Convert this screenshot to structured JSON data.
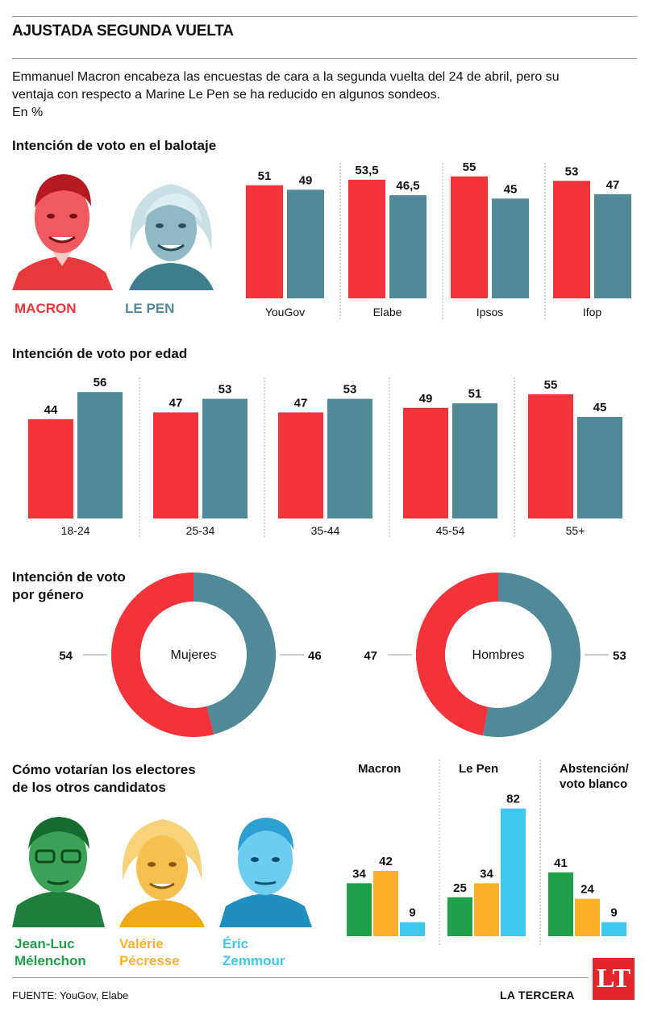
{
  "header": {
    "title": "AJUSTADA SEGUNDA VUELTA",
    "intro": "Emmanuel Macron encabeza las encuestas de cara a la segunda vuelta del 24 de abril, pero su ventaja con respecto a Marine Le Pen se ha reducido en algunos sondeos.",
    "unit": "En %"
  },
  "colors": {
    "macron": "#f2333a",
    "lepen": "#508a99",
    "green": "#1fa14a",
    "orange": "#fbb12a",
    "cyan": "#3fc8ee"
  },
  "section1": {
    "title": "Intención de voto en el balotaje",
    "macron_label": "MACRON",
    "lepen_label": "LE PEN"
  },
  "section2": {
    "title": "Intención de voto por edad"
  },
  "section3": {
    "title_line1": "Intención de voto",
    "title_line2": "por género"
  },
  "section4": {
    "title_line1": "Cómo votarían los electores",
    "title_line2": "de los otros candidatos",
    "cand1_line1": "Jean-Luc",
    "cand1_line2": "Mélenchon",
    "cand2_line1": "Valérie",
    "cand2_line2": "Pécresse",
    "cand3_line1": "Éric",
    "cand3_line2": "Zemmour"
  },
  "footer": {
    "source": "FUENTE: YouGov, Elabe",
    "brand": "LA TERCERA",
    "logo": "LT"
  },
  "chart_data": [
    {
      "type": "bar",
      "title": "Intención de voto en el balotaje",
      "categories": [
        "YouGov",
        "Elabe",
        "Ipsos",
        "Ifop"
      ],
      "series": [
        {
          "name": "MACRON",
          "color": "#f2333a",
          "values": [
            51,
            53.5,
            55,
            53
          ],
          "labels": [
            "51",
            "53,5",
            "55",
            "53"
          ]
        },
        {
          "name": "LE PEN",
          "color": "#508a99",
          "values": [
            49,
            46.5,
            45,
            47
          ],
          "labels": [
            "49",
            "46,5",
            "45",
            "47"
          ]
        }
      ]
    },
    {
      "type": "bar",
      "title": "Intención de voto por edad",
      "categories": [
        "18-24",
        "25-34",
        "35-44",
        "45-54",
        "55+"
      ],
      "series": [
        {
          "color": "#f2333a",
          "values": [
            44,
            47,
            47,
            49,
            55
          ],
          "labels": [
            "44",
            "47",
            "47",
            "49",
            "55"
          ]
        },
        {
          "color": "#508a99",
          "values": [
            56,
            53,
            53,
            51,
            45
          ],
          "labels": [
            "56",
            "53",
            "53",
            "51",
            "45"
          ]
        }
      ]
    },
    {
      "type": "pie",
      "title": "Intención de voto por género",
      "donuts": [
        {
          "center_label": "Mujeres",
          "macron": 54,
          "lepen": 46,
          "macron_label": "54",
          "lepen_label": "46"
        },
        {
          "center_label": "Hombres",
          "macron": 47,
          "lepen": 53,
          "macron_label": "47",
          "lepen_label": "53"
        }
      ]
    },
    {
      "type": "bar",
      "title": "Cómo votarían los electores de los otros candidatos",
      "groups": [
        "Macron",
        "Le Pen",
        "Abstención/ voto blanco"
      ],
      "group_lines": [
        [
          "Macron"
        ],
        [
          "Le Pen"
        ],
        [
          "Abstención/",
          "voto blanco"
        ]
      ],
      "series": [
        {
          "name": "Jean-Luc Mélenchon",
          "color": "#1fa14a",
          "values": [
            34,
            25,
            41
          ]
        },
        {
          "name": "Valérie Pécresse",
          "color": "#fbb12a",
          "values": [
            42,
            34,
            24
          ]
        },
        {
          "name": "Éric Zemmour",
          "color": "#3fc8ee",
          "values": [
            9,
            82,
            9
          ]
        }
      ]
    }
  ]
}
